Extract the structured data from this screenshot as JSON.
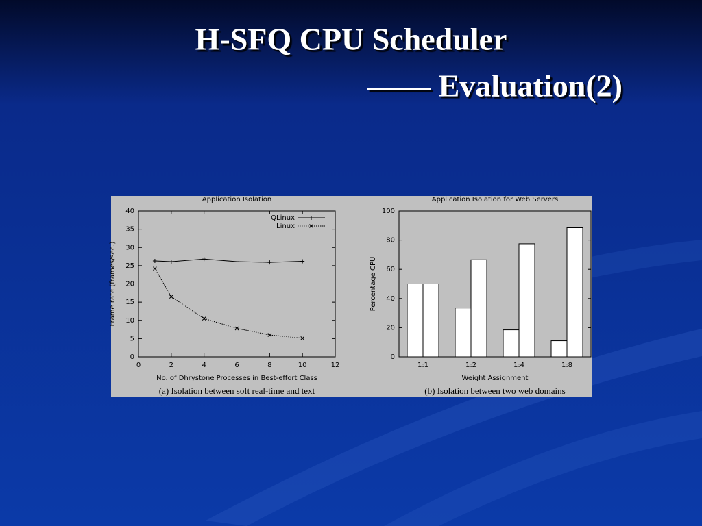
{
  "slide": {
    "title": [
      "H-SFQ CPU Scheduler",
      "—— Evaluation(2)"
    ]
  },
  "chart_data": [
    {
      "type": "line",
      "title": "Application Isolation",
      "x_label": "No. of Dhrystone Processes in Best-effort Class",
      "y_label": "Frame rate (frames/sec.)",
      "caption": "(a) Isolation between soft real-time and text",
      "x": [
        1,
        2,
        4,
        6,
        8,
        10
      ],
      "series": [
        {
          "name": "QLinux",
          "color": "#000000",
          "marker": "plus",
          "line_style": "solid",
          "values": [
            26.3,
            26.1,
            26.8,
            26.1,
            25.9,
            26.2
          ]
        },
        {
          "name": "Linux",
          "color": "#000000",
          "marker": "cross",
          "line_style": "dotted",
          "values": [
            24.2,
            16.5,
            10.5,
            7.8,
            6.0,
            5.1
          ]
        }
      ],
      "xlim": [
        0,
        12
      ],
      "xticks": [
        0,
        2,
        4,
        6,
        8,
        10,
        12
      ],
      "ylim": [
        0,
        40
      ],
      "yticks": [
        0,
        5,
        10,
        15,
        20,
        25,
        30,
        35,
        40
      ],
      "legend": "upper right"
    },
    {
      "type": "bar",
      "title": "Application Isolation for Web Servers",
      "x_label": "Weight Assignment",
      "y_label": "Percentage CPU",
      "caption": "(b) Isolation between two web domains",
      "categories": [
        "1:1",
        "1:2",
        "1:4",
        "1:8"
      ],
      "series": [
        {
          "color": "#ffffff",
          "values": [
            50,
            33.5,
            18.5,
            11
          ]
        },
        {
          "color": "#ffffff",
          "values": [
            50,
            66.5,
            77.5,
            88.5
          ]
        }
      ],
      "ylim": [
        0,
        100
      ],
      "yticks": [
        0,
        20,
        40,
        60,
        80,
        100
      ]
    }
  ]
}
